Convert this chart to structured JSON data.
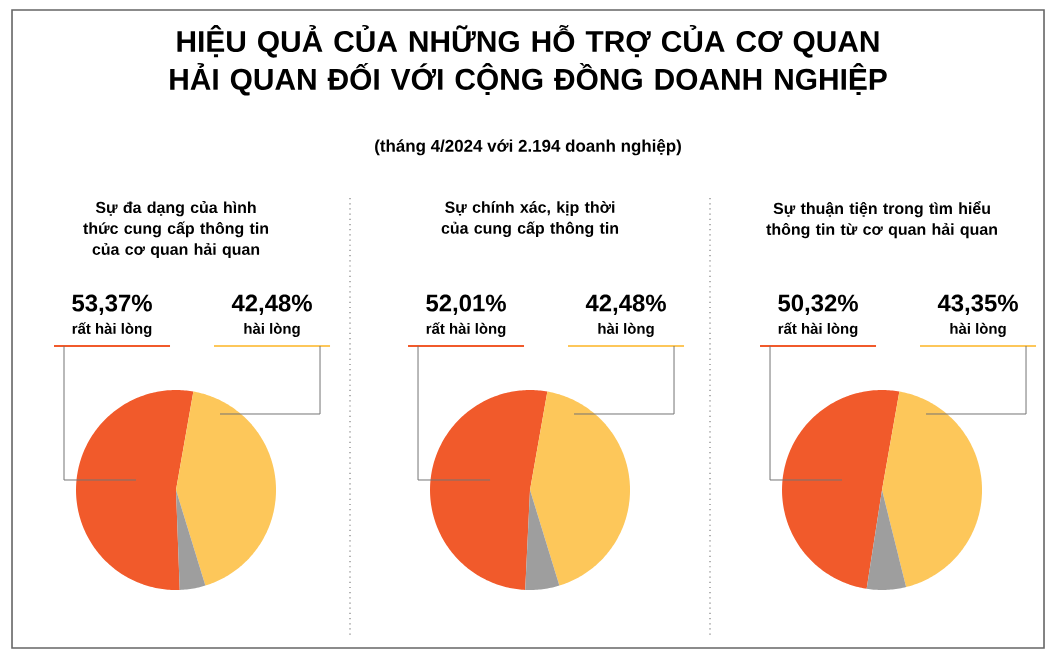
{
  "chart_data": [
    {
      "type": "other",
      "title": "HIỆU QUẢ CỦA NHỮNG HỖ TRỢ CỦA CƠ QUAN HẢI QUAN ĐỐI VỚI CỘNG ĐỒNG DOANH NGHIỆP",
      "subtitle": "(tháng 4/2024 với **2.194** doanh nghiệp)"
    },
    {
      "type": "pie",
      "title": "Sự đa dạng của hình thức cung cấp thông tin của cơ quan hải quan",
      "categories": [
        "rất hài lòng",
        "hài lòng",
        null
      ],
      "values": [
        53.37,
        42.48,
        4.15
      ],
      "value_labels": [
        "53,37%",
        "42,48%",
        null
      ],
      "colors": [
        "#f15a2b",
        "#fdc75a",
        "#9e9e9e"
      ]
    },
    {
      "type": "pie",
      "title": "Sự chính xác, kịp thời của cung cấp thông tin",
      "categories": [
        "rất hài lòng",
        "hài lòng",
        null
      ],
      "values": [
        52.01,
        42.48,
        5.51
      ],
      "value_labels": [
        "52,01%",
        "42,48%",
        null
      ],
      "colors": [
        "#f15a2b",
        "#fdc75a",
        "#9e9e9e"
      ]
    },
    {
      "type": "pie",
      "title": "Sự thuận tiện trong tìm hiểu thông tin từ cơ quan hải quan",
      "categories": [
        "rất hài lòng",
        "hài lòng",
        null
      ],
      "values": [
        50.32,
        43.35,
        6.33
      ],
      "value_labels": [
        "50,32%",
        "43,35%",
        null
      ],
      "colors": [
        "#f15a2b",
        "#fdc75a",
        "#9e9e9e"
      ]
    }
  ]
}
